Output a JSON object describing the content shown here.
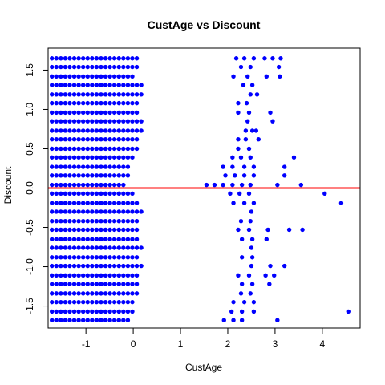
{
  "chart_data": {
    "type": "scatter",
    "title": "CustAge vs Discount",
    "xlabel": "CustAge",
    "ylabel": "Discount",
    "xlim": [
      -1.8,
      4.8
    ],
    "ylim": [
      -1.78,
      1.78
    ],
    "x_ticks": [
      -1,
      0,
      1,
      2,
      3,
      4
    ],
    "x_tick_labels": [
      "-1",
      "0",
      "1",
      "2",
      "3",
      "4"
    ],
    "y_ticks": [
      -1.5,
      -1.0,
      -0.5,
      0.0,
      0.5,
      1.0,
      1.5
    ],
    "y_tick_labels": [
      "-1.5",
      "-1.0",
      "-0.5",
      "0.0",
      "0.5",
      "1.0",
      "1.5"
    ],
    "grid": false,
    "point_color": "#0000ff",
    "reference_line": {
      "y": 0,
      "color": "#ff0000"
    },
    "x_step": 0.0945,
    "x_start": -1.72,
    "rows": [
      {
        "y": 1.65,
        "n": 20,
        "extra": [
          2.18,
          2.35,
          2.55,
          2.78,
          2.95,
          3.12
        ]
      },
      {
        "y": 1.54,
        "n": 20,
        "extra": [
          2.28,
          2.48,
          3.08
        ]
      },
      {
        "y": 1.42,
        "n": 19,
        "extra": [
          2.12,
          2.42,
          2.82,
          3.1
        ]
      },
      {
        "y": 1.31,
        "n": 21,
        "extra": [
          2.33,
          2.52
        ]
      },
      {
        "y": 1.19,
        "n": 21,
        "extra": [
          2.48,
          2.62
        ]
      },
      {
        "y": 1.08,
        "n": 20,
        "extra": [
          2.22,
          2.4
        ]
      },
      {
        "y": 0.96,
        "n": 20,
        "extra": [
          2.22,
          2.45,
          2.9
        ]
      },
      {
        "y": 0.85,
        "n": 21,
        "extra": [
          2.42,
          2.95
        ]
      },
      {
        "y": 0.73,
        "n": 21,
        "extra": [
          2.38,
          2.52,
          2.6
        ]
      },
      {
        "y": 0.62,
        "n": 20,
        "extra": [
          2.22,
          2.38,
          2.65
        ]
      },
      {
        "y": 0.5,
        "n": 20,
        "extra": [
          2.22,
          2.45
        ]
      },
      {
        "y": 0.39,
        "n": 19,
        "extra": [
          2.1,
          2.28,
          2.48,
          3.4
        ]
      },
      {
        "y": 0.27,
        "n": 18,
        "extra": [
          1.9,
          2.1,
          2.35,
          2.55,
          3.2
        ]
      },
      {
        "y": 0.16,
        "n": 18,
        "extra": [
          1.95,
          2.15,
          2.35,
          2.55,
          3.2
        ]
      },
      {
        "y": 0.04,
        "n": 17,
        "extra": [
          1.55,
          1.72,
          1.9,
          2.1,
          2.3,
          2.48,
          3.05,
          3.55
        ]
      },
      {
        "y": -0.07,
        "n": 19,
        "extra": [
          2.05,
          2.25,
          2.45,
          4.05
        ]
      },
      {
        "y": -0.19,
        "n": 20,
        "extra": [
          2.12,
          2.35,
          2.55,
          4.4
        ]
      },
      {
        "y": -0.3,
        "n": 21,
        "extra": [
          2.5
        ]
      },
      {
        "y": -0.42,
        "n": 20,
        "extra": [
          2.28,
          2.48
        ]
      },
      {
        "y": -0.53,
        "n": 20,
        "extra": [
          2.22,
          2.45,
          2.85,
          3.3,
          3.58
        ]
      },
      {
        "y": -0.65,
        "n": 20,
        "extra": [
          2.3,
          2.52,
          2.82
        ]
      },
      {
        "y": -0.76,
        "n": 21,
        "extra": [
          2.5
        ]
      },
      {
        "y": -0.88,
        "n": 20,
        "extra": [
          2.3,
          2.52
        ]
      },
      {
        "y": -0.99,
        "n": 21,
        "extra": [
          2.5,
          2.9,
          3.2
        ]
      },
      {
        "y": -1.11,
        "n": 20,
        "extra": [
          2.22,
          2.45,
          2.8,
          2.98
        ]
      },
      {
        "y": -1.22,
        "n": 20,
        "extra": [
          2.3,
          2.52,
          2.88
        ]
      },
      {
        "y": -1.34,
        "n": 20,
        "extra": [
          2.28,
          2.48
        ]
      },
      {
        "y": -1.45,
        "n": 19,
        "extra": [
          2.12,
          2.35,
          2.55
        ]
      },
      {
        "y": -1.57,
        "n": 19,
        "extra": [
          2.08,
          2.3,
          2.55,
          4.55
        ]
      },
      {
        "y": -1.68,
        "n": 18,
        "extra": [
          1.92,
          2.12,
          2.3,
          3.05
        ]
      }
    ]
  }
}
